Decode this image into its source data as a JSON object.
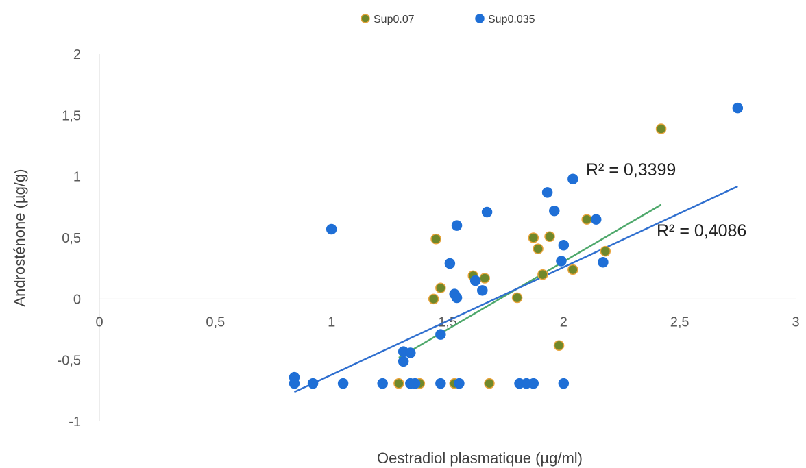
{
  "chart_data": {
    "type": "scatter",
    "title": "",
    "xlabel": "Oestradiol plasmatique (µg/ml)",
    "ylabel": "Androsténone (µg/g)",
    "xlim": [
      0,
      3
    ],
    "ylim": [
      -1,
      2
    ],
    "x_ticks": [
      "0",
      "0,5",
      "1",
      "1,5",
      "2",
      "2,5",
      "3"
    ],
    "y_ticks": [
      "-1",
      "-0,5",
      "0",
      "0,5",
      "1",
      "1,5",
      "2"
    ],
    "legend_position": "top-center",
    "grid": false,
    "series": [
      {
        "name": "Sup0.07",
        "color": "#70882a",
        "edge_color": "#e8a33a",
        "points": [
          [
            1.44,
            0.0
          ],
          [
            1.45,
            0.49
          ],
          [
            1.47,
            0.09
          ],
          [
            1.61,
            0.19
          ],
          [
            1.66,
            0.17
          ],
          [
            1.8,
            0.01
          ],
          [
            1.87,
            0.5
          ],
          [
            1.89,
            0.41
          ],
          [
            1.91,
            0.2
          ],
          [
            1.94,
            0.51
          ],
          [
            1.98,
            -0.38
          ],
          [
            2.04,
            0.24
          ],
          [
            2.1,
            0.65
          ],
          [
            2.18,
            0.39
          ],
          [
            2.42,
            1.39
          ],
          [
            1.29,
            -0.69
          ],
          [
            1.38,
            -0.69
          ],
          [
            1.53,
            -0.69
          ],
          [
            1.68,
            -0.69
          ]
        ],
        "trendline": {
          "x": [
            1.29,
            2.42
          ],
          "y": [
            -0.48,
            0.77
          ],
          "color": "#4ea86b",
          "label": "R² = 0,3399"
        }
      },
      {
        "name": "Sup0.035",
        "color": "#1f6fd6",
        "edge_color": "#1f6fd6",
        "points": [
          [
            0.84,
            -0.64
          ],
          [
            0.84,
            -0.69
          ],
          [
            0.92,
            -0.69
          ],
          [
            1.0,
            0.57
          ],
          [
            1.05,
            -0.69
          ],
          [
            1.22,
            -0.69
          ],
          [
            1.31,
            -0.43
          ],
          [
            1.31,
            -0.51
          ],
          [
            1.34,
            -0.44
          ],
          [
            1.34,
            -0.69
          ],
          [
            1.36,
            -0.69
          ],
          [
            1.47,
            -0.29
          ],
          [
            1.47,
            -0.69
          ],
          [
            1.51,
            0.29
          ],
          [
            1.53,
            0.04
          ],
          [
            1.54,
            0.01
          ],
          [
            1.54,
            0.6
          ],
          [
            1.55,
            -0.69
          ],
          [
            1.62,
            0.15
          ],
          [
            1.65,
            0.07
          ],
          [
            1.67,
            0.71
          ],
          [
            1.81,
            -0.69
          ],
          [
            1.84,
            -0.69
          ],
          [
            1.87,
            -0.69
          ],
          [
            1.93,
            0.87
          ],
          [
            1.96,
            0.72
          ],
          [
            1.99,
            0.31
          ],
          [
            2.0,
            0.44
          ],
          [
            2.0,
            -0.69
          ],
          [
            2.04,
            0.98
          ],
          [
            2.14,
            0.65
          ],
          [
            2.17,
            0.3
          ],
          [
            2.75,
            1.56
          ]
        ],
        "trendline": {
          "x": [
            0.84,
            2.75
          ],
          "y": [
            -0.76,
            0.92
          ],
          "color": "#2f6fcf",
          "label": "R² = 0,4086"
        }
      }
    ]
  }
}
